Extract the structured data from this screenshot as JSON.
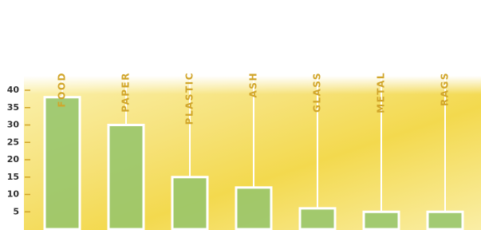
{
  "chart_data": {
    "type": "bar",
    "categories": [
      "FOOD",
      "PAPER",
      "PLASTIC",
      "ASH",
      "GLASS",
      "METAL",
      "RAGS"
    ],
    "values": [
      38,
      30,
      15,
      12,
      6,
      5,
      5
    ],
    "color": "#93c46c",
    "ylim": [
      0,
      40
    ],
    "yticks": [
      5,
      10,
      15,
      20,
      25,
      30,
      35,
      40
    ]
  }
}
